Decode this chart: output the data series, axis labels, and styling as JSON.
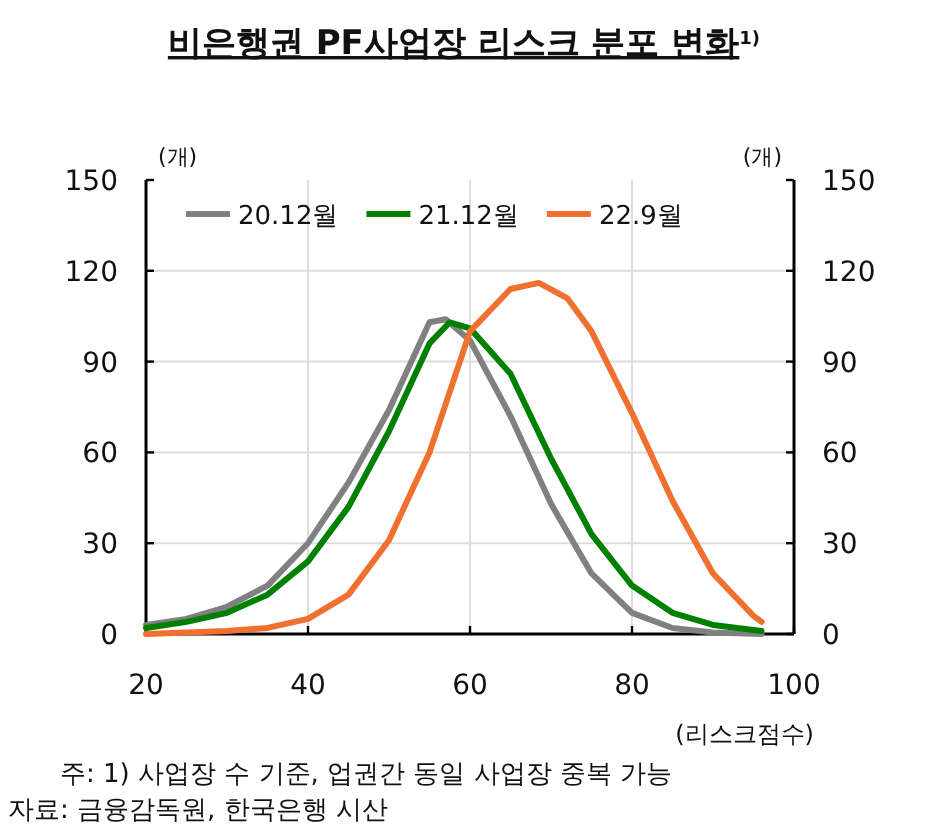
{
  "chart_data": {
    "type": "line",
    "title": "비은행권 PF사업장 리스크 분포 변화$^{1)}$",
    "xlabel": "(리스크점수)",
    "ylabel": "(개)",
    "y2label": "(개)",
    "xlim": [
      20,
      100
    ],
    "xticks": [
      20,
      40,
      60,
      80,
      100
    ],
    "ylim": [
      0,
      150
    ],
    "yticks": [
      0,
      30,
      60,
      90,
      120,
      150
    ],
    "y2lim": [
      0,
      150
    ],
    "y2ticks": [
      0,
      30,
      60,
      90,
      120,
      150
    ],
    "grid": true,
    "legend": "top",
    "series": [
      {
        "name": "20.12월",
        "color": "#808080",
        "x": [
          20,
          25,
          30,
          35,
          40,
          45,
          50,
          55,
          57,
          60,
          65,
          70,
          75,
          80,
          85,
          90,
          96
        ],
        "values": [
          3,
          5,
          9,
          16,
          30,
          50,
          74,
          103,
          104,
          97,
          72,
          43,
          20,
          7,
          2,
          0.5,
          0
        ]
      },
      {
        "name": "21.12월",
        "color": "#008000",
        "x": [
          20,
          25,
          30,
          35,
          40,
          45,
          50,
          55,
          57.5,
          60,
          65,
          70,
          75,
          80,
          85,
          90,
          96
        ],
        "values": [
          2,
          4,
          7,
          13,
          24,
          42,
          67,
          96,
          103,
          101,
          86,
          58,
          33,
          16,
          7,
          3,
          1
        ]
      },
      {
        "name": "22.9월",
        "color": "#f07030",
        "x": [
          20,
          25,
          30,
          35,
          40,
          45,
          50,
          55,
          60,
          65,
          68.5,
          72,
          75,
          80,
          85,
          90,
          95,
          96
        ],
        "values": [
          0,
          0.5,
          1,
          2,
          5,
          13,
          31,
          60,
          100,
          114,
          116,
          111,
          100,
          73,
          44,
          20,
          6,
          4
        ]
      }
    ],
    "annotations": [
      "주: 1) 사업장 수 기준, 업권간 동일 사업장 중복 가능",
      "자료: 금융감독원, 한국은행 시산"
    ]
  }
}
